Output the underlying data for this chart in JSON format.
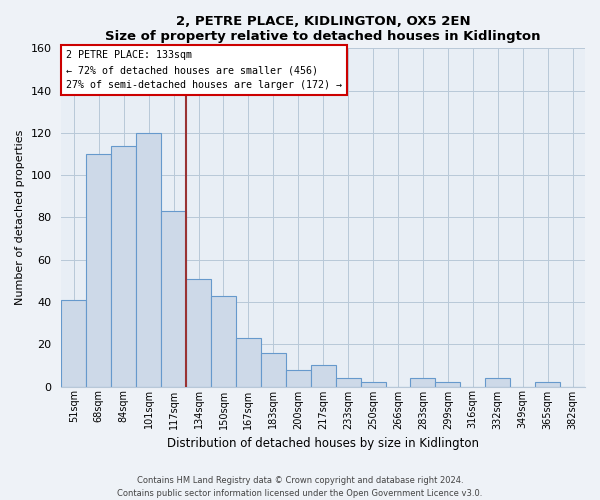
{
  "title": "2, PETRE PLACE, KIDLINGTON, OX5 2EN",
  "subtitle": "Size of property relative to detached houses in Kidlington",
  "xlabel": "Distribution of detached houses by size in Kidlington",
  "ylabel": "Number of detached properties",
  "bin_labels": [
    "51sqm",
    "68sqm",
    "84sqm",
    "101sqm",
    "117sqm",
    "134sqm",
    "150sqm",
    "167sqm",
    "183sqm",
    "200sqm",
    "217sqm",
    "233sqm",
    "250sqm",
    "266sqm",
    "283sqm",
    "299sqm",
    "316sqm",
    "332sqm",
    "349sqm",
    "365sqm",
    "382sqm"
  ],
  "bar_heights": [
    41,
    110,
    114,
    120,
    83,
    51,
    43,
    23,
    16,
    8,
    10,
    4,
    2,
    0,
    4,
    2,
    0,
    4,
    0,
    2,
    0
  ],
  "bar_color": "#cdd9e8",
  "bar_edge_color": "#6699cc",
  "property_label": "2 PETRE PLACE: 133sqm",
  "annotation_line1": "← 72% of detached houses are smaller (456)",
  "annotation_line2": "27% of semi-detached houses are larger (172) →",
  "vline_color": "#993333",
  "annotation_box_edge": "#cc0000",
  "ylim": [
    0,
    160
  ],
  "yticks": [
    0,
    20,
    40,
    60,
    80,
    100,
    120,
    140,
    160
  ],
  "footer_line1": "Contains HM Land Registry data © Crown copyright and database right 2024.",
  "footer_line2": "Contains public sector information licensed under the Open Government Licence v3.0.",
  "bg_color": "#eef2f7",
  "plot_bg_color": "#e8eef5"
}
